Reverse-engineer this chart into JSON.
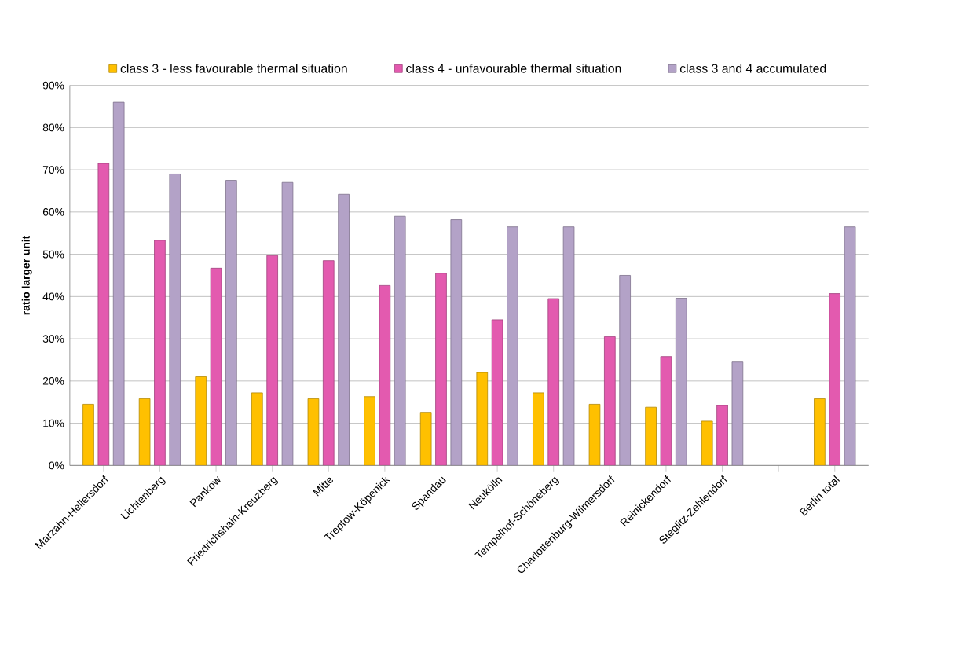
{
  "chart_data": {
    "type": "bar",
    "ylabel": "ratio larger unit",
    "categories": [
      "Marzahn-Hellersdorf",
      "Lichtenberg",
      "Pankow",
      "Friedrichshain-Kreuzberg",
      "Mitte",
      "Treptow-Köpenick",
      "Spandau",
      "Neukölln",
      "Tempelhof-Schöneberg",
      "Charlottenburg-Wilmersdorf",
      "Reinickendorf",
      "Steglitz-Zehlendorf",
      null,
      "Berlin total"
    ],
    "series": [
      {
        "name": "class 3 - less favourable thermal situation",
        "color": "#ffc000",
        "values": [
          14.5,
          15.8,
          21,
          17.2,
          15.8,
          16.3,
          12.6,
          22,
          17.2,
          14.5,
          13.8,
          10.5,
          null,
          15.8
        ]
      },
      {
        "name": "class 4 - unfavourable thermal situation",
        "color": "#e35aaf",
        "values": [
          71.5,
          53.3,
          46.7,
          49.7,
          48.5,
          42.6,
          45.5,
          34.5,
          39.5,
          30.5,
          25.8,
          14.2,
          null,
          40.7
        ]
      },
      {
        "name": "class 3 and 4 accumulated",
        "color": "#b3a2c7",
        "values": [
          86,
          69,
          67.5,
          67,
          64.2,
          59,
          58.2,
          56.5,
          56.5,
          45,
          39.6,
          24.5,
          null,
          56.5
        ]
      }
    ],
    "ylim": [
      0,
      90
    ],
    "yticks": [
      {
        "value": 0,
        "label": "0%"
      },
      {
        "value": 10,
        "label": "10%"
      },
      {
        "value": 20,
        "label": "20%"
      },
      {
        "value": 30,
        "label": "30%"
      },
      {
        "value": 40,
        "label": "40%"
      },
      {
        "value": 50,
        "label": "50%"
      },
      {
        "value": 60,
        "label": "60%"
      },
      {
        "value": 70,
        "label": "70%"
      },
      {
        "value": 80,
        "label": "80%"
      },
      {
        "value": 90,
        "label": "90%"
      }
    ],
    "grid": "y",
    "legend": "top"
  }
}
